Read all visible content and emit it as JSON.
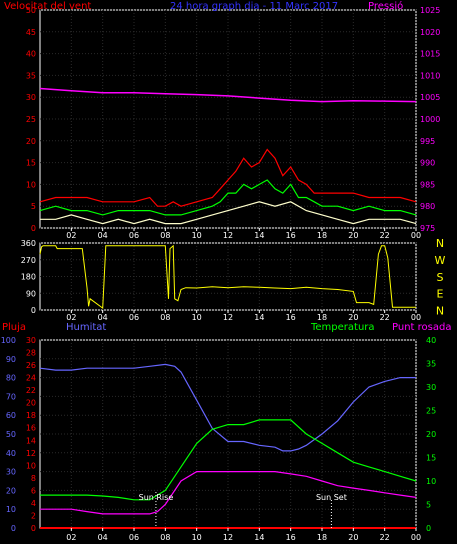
{
  "chart_data": [
    {
      "type": "line",
      "panel": "wind-pressure",
      "title": "24 hora graph dia - 11 Marc 2017",
      "left_label": "Velocitat del vent",
      "right_label": "Pressió",
      "x_tick_labels": [
        "02",
        "04",
        "06",
        "08",
        "10",
        "12",
        "14",
        "16",
        "18",
        "20",
        "22",
        "00"
      ],
      "y_left_ticks": [
        "0",
        "5",
        "10",
        "15",
        "20",
        "25",
        "30",
        "35",
        "40",
        "45",
        "50"
      ],
      "y_left_range": [
        0,
        50
      ],
      "y_right_ticks": [
        "975",
        "980",
        "985",
        "990",
        "995",
        "1000",
        "1005",
        "1010",
        "1015",
        "1020",
        "1025"
      ],
      "y_right_range": [
        975,
        1025
      ],
      "grid": true,
      "series": [
        {
          "name": "Velocitat del vent",
          "axis": "left",
          "color": "#ff0000",
          "x": [
            0,
            1,
            2,
            3,
            4,
            5,
            6,
            7,
            7.5,
            8,
            8.5,
            9,
            10,
            11,
            11.5,
            12,
            12.5,
            13,
            13.5,
            14,
            14.5,
            15,
            15.5,
            16,
            16.5,
            17,
            17.5,
            18,
            19,
            20,
            21,
            22,
            23,
            24
          ],
          "y": [
            6,
            7,
            7,
            7,
            6,
            6,
            6,
            7,
            5,
            5,
            6,
            5,
            6,
            7,
            9,
            11,
            13,
            16,
            14,
            15,
            18,
            16,
            12,
            14,
            11,
            10,
            8,
            8,
            8,
            8,
            7,
            7,
            7,
            6
          ]
        },
        {
          "color": "#00ff00",
          "axis": "left",
          "x": [
            0,
            1,
            2,
            3,
            4,
            5,
            6,
            7,
            8,
            9,
            10,
            11,
            11.5,
            12,
            12.5,
            13,
            13.5,
            14,
            14.5,
            15,
            15.5,
            16,
            16.5,
            17,
            17.5,
            18,
            19,
            20,
            21,
            22,
            23,
            24
          ],
          "y": [
            4,
            5,
            4,
            4,
            3,
            4,
            4,
            4,
            3,
            3,
            4,
            5,
            6,
            8,
            8,
            10,
            9,
            10,
            11,
            9,
            8,
            10,
            7,
            7,
            6,
            5,
            5,
            4,
            5,
            4,
            4,
            3
          ]
        },
        {
          "color": "#ffffcc",
          "axis": "left",
          "x": [
            0,
            1,
            2,
            3,
            4,
            5,
            6,
            7,
            8,
            9,
            10,
            11,
            12,
            13,
            14,
            15,
            16,
            17,
            18,
            19,
            20,
            21,
            22,
            23,
            24
          ],
          "y": [
            2,
            2,
            3,
            2,
            1,
            2,
            1,
            2,
            1,
            1,
            2,
            3,
            4,
            5,
            6,
            5,
            6,
            4,
            3,
            2,
            1,
            2,
            2,
            2,
            1
          ]
        },
        {
          "name": "Pressió",
          "axis": "right",
          "color": "#ff00ff",
          "x": [
            0,
            2,
            4,
            6,
            8,
            10,
            12,
            14,
            16,
            18,
            20,
            22,
            24
          ],
          "y": [
            1007,
            1006.5,
            1006,
            1006,
            1005.8,
            1005.6,
            1005.3,
            1004.8,
            1004.3,
            1004,
            1004.2,
            1004.1,
            1004
          ]
        }
      ]
    },
    {
      "type": "line",
      "panel": "wind-direction",
      "y_left_ticks": [
        "0",
        "90",
        "180",
        "270",
        "360"
      ],
      "y_left_range": [
        0,
        360
      ],
      "direction_labels": [
        "N",
        "W",
        "S",
        "E",
        "N"
      ],
      "x_tick_labels": [
        "02",
        "04",
        "06",
        "08",
        "10",
        "12",
        "14",
        "16",
        "18",
        "20",
        "22",
        "00"
      ],
      "series": [
        {
          "color": "#ffff00",
          "x": [
            0,
            0.1,
            0.2,
            1.0,
            1.1,
            2.7,
            3.0,
            3.1,
            3.2,
            4.0,
            4.2,
            6.5,
            7.0,
            7.9,
            8.0,
            8.2,
            8.3,
            8.5,
            8.6,
            8.8,
            9.0,
            9.3,
            10,
            11,
            12,
            13,
            14,
            15,
            16,
            17,
            18,
            19,
            20,
            20.2,
            21,
            21.3,
            21.6,
            21.8,
            22.0,
            22.2,
            22.5,
            23,
            24
          ],
          "y": [
            300,
            340,
            345,
            345,
            330,
            330,
            120,
            20,
            60,
            10,
            345,
            345,
            345,
            345,
            345,
            60,
            330,
            345,
            60,
            50,
            110,
            120,
            118,
            125,
            120,
            125,
            122,
            118,
            115,
            122,
            115,
            110,
            100,
            40,
            40,
            30,
            300,
            345,
            345,
            280,
            15,
            15,
            15
          ]
        }
      ]
    },
    {
      "type": "line",
      "panel": "humidity-temperature",
      "label_rain": "Pluja",
      "label_humidity": "Humitat",
      "label_temperature": "Temperatura",
      "label_dewpoint": "Punt rosada",
      "annotation_sunrise": "Sun Rise",
      "annotation_sunset": "Sun Set",
      "sunrise_hour": 7.4,
      "sunset_hour": 18.6,
      "x_tick_labels": [
        "02",
        "04",
        "06",
        "08",
        "10",
        "12",
        "14",
        "16",
        "18",
        "20",
        "22",
        "00"
      ],
      "y_humidity_ticks": [
        "0",
        "10",
        "20",
        "30",
        "40",
        "50",
        "60",
        "70",
        "80",
        "90",
        "100"
      ],
      "y_humidity_range": [
        0,
        100
      ],
      "y_rain_ticks": [
        "0",
        "2",
        "4",
        "6",
        "8",
        "10",
        "12",
        "14",
        "16",
        "18",
        "20",
        "22",
        "24",
        "26",
        "28",
        "30"
      ],
      "y_rain_range": [
        0,
        30
      ],
      "y_temp_ticks": [
        "0",
        "5",
        "10",
        "15",
        "20",
        "25",
        "30",
        "35",
        "40"
      ],
      "y_temp_range": [
        0,
        40
      ],
      "series": [
        {
          "name": "Humitat",
          "axis": "humidity",
          "color": "#6666ff",
          "x": [
            0,
            1,
            2,
            3,
            4,
            5,
            6,
            7,
            8,
            8.6,
            9,
            10,
            11,
            12,
            13,
            14,
            15,
            15.5,
            16,
            16.5,
            17,
            18,
            19,
            20,
            21,
            22,
            23,
            24
          ],
          "y": [
            85,
            84,
            84,
            85,
            85,
            85,
            85,
            86,
            87,
            86,
            83,
            68,
            53,
            46,
            46,
            44,
            43,
            41,
            41,
            42,
            44,
            50,
            57,
            67,
            75,
            78,
            80,
            80
          ]
        },
        {
          "name": "Temperatura",
          "axis": "temperature",
          "color": "#00ff00",
          "x": [
            0,
            1,
            2,
            3,
            4,
            5,
            6,
            7,
            8,
            9,
            10,
            11,
            12,
            13,
            14,
            15,
            16,
            17,
            18,
            19,
            20,
            21,
            22,
            23,
            24
          ],
          "y": [
            7,
            7,
            7,
            7,
            6.8,
            6.5,
            6,
            6,
            8,
            13,
            18,
            21,
            22,
            22,
            23,
            23,
            23,
            20,
            18,
            16,
            14,
            13,
            12,
            11,
            10
          ]
        },
        {
          "name": "Punt rosada",
          "axis": "temperature",
          "color": "#ff00ff",
          "x": [
            0,
            1,
            2,
            3,
            4,
            5,
            6,
            7,
            7.5,
            8,
            9,
            10,
            11,
            12,
            13,
            14,
            15,
            16,
            17,
            18,
            19,
            20,
            21,
            22,
            23,
            24
          ],
          "y": [
            4,
            4,
            4,
            3.5,
            3,
            3,
            3,
            3,
            3.5,
            5,
            10,
            12,
            12,
            12,
            12,
            12,
            12,
            11.5,
            11,
            10,
            9,
            8.5,
            8,
            7.5,
            7,
            6.5
          ]
        },
        {
          "name": "Pluja",
          "axis": "rain",
          "color": "#ff0000",
          "x": [
            0,
            24
          ],
          "y": [
            0,
            0
          ]
        }
      ]
    }
  ]
}
